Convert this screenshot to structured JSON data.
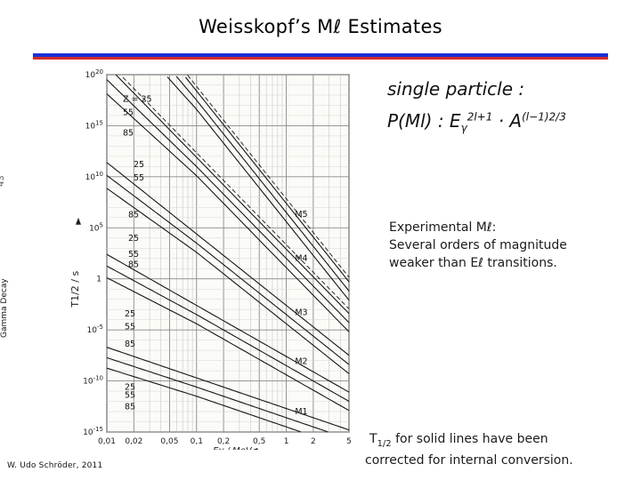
{
  "slide": {
    "title": "Weisskopf’s Mℓ Estimates",
    "number": "43",
    "side_label": "Gamma Decay",
    "footer": "W. Udo Schröder, 2011",
    "accent_blue": "#1a2fd6",
    "accent_red": "#d42a2a"
  },
  "formula": {
    "line1": "single particle :",
    "line2_prefix": "P(Ml) : E",
    "line2_gamma": "γ",
    "line2_exp1": "2l+1",
    "line2_mid": " · A",
    "line2_exp2": "(l−1)2/3"
  },
  "note": {
    "line1": "Experimental Mℓ:",
    "line2": "Several orders of magnitude",
    "line3": "weaker than Eℓ transitions."
  },
  "correction": {
    "t": "T",
    "sub": "1/2",
    "rest1": " for solid lines have been",
    "line2": "corrected for internal conversion."
  },
  "chart_data": {
    "type": "line",
    "xscale": "log",
    "yscale": "log",
    "xlim": [
      0.01,
      5
    ],
    "ylim": [
      1e-15,
      1e+20
    ],
    "xlabel": "Eγ / MeV",
    "ylabel": "T1/2 / s",
    "x_ticks": [
      "0,01",
      "0,02",
      "0,05",
      "0,1",
      "0,2",
      "0,5",
      "1",
      "2",
      "5"
    ],
    "y_ticks": [
      "10-15",
      "10-10",
      "10-5",
      "1",
      "105",
      "1010",
      "1015",
      "1020"
    ],
    "curve_labels": [
      "M5",
      "M4",
      "M3",
      "M2",
      "M1"
    ],
    "z_labels": [
      {
        "multipole": "M5",
        "labels": [
          "Z = 25",
          "55",
          "85"
        ]
      },
      {
        "multipole": "M4",
        "labels": [
          "25",
          "55"
        ]
      },
      {
        "multipole": "M3",
        "labels": [
          "85",
          "25",
          "55",
          "85"
        ]
      },
      {
        "multipole": "M2",
        "labels": [
          "25",
          "55",
          "85"
        ]
      },
      {
        "multipole": "M1",
        "labels": [
          "25",
          "55",
          "85"
        ]
      }
    ],
    "series": [
      {
        "name": "M5",
        "slope": -11,
        "log_at_1MeV": 7.4
      },
      {
        "name": "M4",
        "slope": -9,
        "log_at_1MeV": 2.9
      },
      {
        "name": "M3",
        "slope": -7,
        "log_at_1MeV": -2.6
      },
      {
        "name": "M2",
        "slope": -5,
        "log_at_1MeV": -7.6
      },
      {
        "name": "M1",
        "slope": -3,
        "log_at_1MeV": -12.7
      }
    ]
  }
}
